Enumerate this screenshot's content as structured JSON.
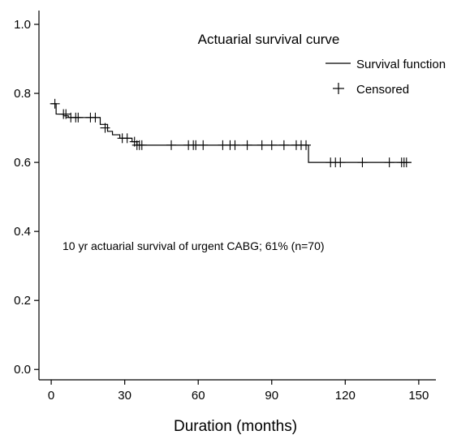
{
  "chart_data": {
    "type": "line",
    "title": "Actuarial survival curve",
    "xlabel": "Duration (months)",
    "ylabel": "",
    "xlim": [
      -5,
      157
    ],
    "ylim": [
      -0.03,
      1.04
    ],
    "xticks": [
      0,
      30,
      60,
      90,
      120,
      150
    ],
    "yticks": [
      0.0,
      0.2,
      0.4,
      0.6,
      0.8,
      1.0
    ],
    "ytick_labels": [
      "0.0",
      "0.2",
      "0.4",
      "0.6",
      "0.8",
      "1.0"
    ],
    "grid": false,
    "legend_position": "top-right",
    "legend": [
      {
        "label": "Survival function",
        "marker": "line"
      },
      {
        "label": "Censored",
        "marker": "plus"
      }
    ],
    "annotation": "10 yr actuarial survival of urgent CABG; 61% (n=70)",
    "series": [
      {
        "name": "Survival function",
        "step": true,
        "x": [
          0,
          2,
          3,
          5,
          7,
          18,
          20,
          23,
          25,
          28,
          33,
          35,
          105,
          147
        ],
        "y": [
          0.77,
          0.74,
          0.74,
          0.735,
          0.73,
          0.73,
          0.71,
          0.69,
          0.68,
          0.67,
          0.66,
          0.65,
          0.6,
          0.6
        ]
      },
      {
        "name": "Censored",
        "marker": "plus",
        "x": [
          1.5,
          5,
          6,
          8,
          10,
          11,
          16,
          18,
          22,
          29,
          31,
          34,
          35,
          36,
          37,
          49,
          56,
          58,
          59,
          62,
          70,
          73,
          75,
          80,
          86,
          90,
          95,
          100,
          102,
          104,
          114,
          116,
          118,
          127,
          138,
          143,
          144,
          145
        ],
        "y": [
          0.77,
          0.74,
          0.74,
          0.73,
          0.73,
          0.73,
          0.73,
          0.73,
          0.7,
          0.67,
          0.67,
          0.66,
          0.65,
          0.65,
          0.65,
          0.65,
          0.65,
          0.65,
          0.65,
          0.65,
          0.65,
          0.65,
          0.65,
          0.65,
          0.65,
          0.65,
          0.65,
          0.65,
          0.65,
          0.65,
          0.6,
          0.6,
          0.6,
          0.6,
          0.6,
          0.6,
          0.6,
          0.6
        ]
      }
    ]
  }
}
